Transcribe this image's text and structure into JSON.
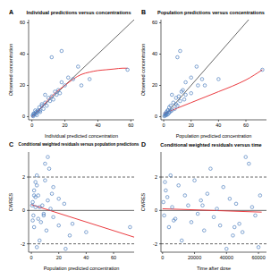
{
  "chart_data": [
    {
      "type": "scatter",
      "title": "Individual predictions versus concentrations",
      "annotations": [
        "A"
      ],
      "x_label": "Individual predicted concentration",
      "y_label": "Observed concentration",
      "xlim": [
        -2,
        62
      ],
      "ylim": [
        -2,
        62
      ],
      "xticks": [
        0,
        20,
        40,
        60
      ],
      "yticks": [
        0,
        20,
        40,
        60
      ],
      "series": [
        {
          "type": "scatter",
          "color": "#4f7fbf",
          "marker": "circle",
          "x": [
            0.5,
            1,
            1.5,
            2,
            2.5,
            3,
            3.5,
            4,
            4.5,
            5,
            6,
            7,
            8,
            9,
            10,
            11,
            12,
            13,
            14,
            15,
            16,
            17,
            18,
            20,
            22,
            25,
            28,
            30,
            35,
            18,
            12,
            8,
            6,
            5,
            3,
            2,
            1,
            0.8,
            58
          ],
          "values": [
            0.8,
            1.2,
            2,
            1.5,
            3,
            2.5,
            4,
            3.5,
            6,
            4,
            7,
            5,
            9,
            7,
            12,
            10,
            13,
            11,
            16,
            14,
            17,
            15,
            22,
            20,
            25,
            24,
            32,
            20,
            24,
            42,
            38,
            14,
            8,
            3,
            1,
            4,
            2,
            0.3,
            30
          ]
        },
        {
          "type": "line",
          "color": "#000000",
          "line_style": "solid",
          "x": [
            0,
            62
          ],
          "values": [
            0,
            62
          ]
        },
        {
          "type": "line",
          "color": "#e8262b",
          "line_style": "solid",
          "marker": "smooth",
          "x": [
            0,
            5,
            10,
            15,
            20,
            25,
            30,
            35,
            40,
            45,
            50,
            55,
            58
          ],
          "values": [
            0,
            5,
            11,
            16,
            20,
            24,
            27,
            28.5,
            29.5,
            30,
            30.5,
            31,
            31
          ]
        }
      ]
    },
    {
      "type": "scatter",
      "title": "Population predictions versus concentrations",
      "annotations": [
        "B"
      ],
      "x_label": "Population predicted concentration",
      "y_label": "Observed concentration",
      "xlim": [
        -2,
        75
      ],
      "ylim": [
        -2,
        62
      ],
      "xticks": [
        0,
        20,
        40,
        60
      ],
      "yticks": [
        0,
        20,
        40,
        60
      ],
      "series": [
        {
          "type": "scatter",
          "color": "#4f7fbf",
          "marker": "circle",
          "x": [
            1,
            1.5,
            2,
            3,
            2,
            4,
            3,
            5,
            4,
            6,
            5,
            8,
            7,
            10,
            9,
            12,
            11,
            15,
            13,
            16,
            14,
            20,
            16,
            25,
            20,
            28,
            24,
            30,
            40,
            12,
            10,
            6,
            9,
            4,
            2,
            3,
            1,
            0.5,
            72
          ],
          "values": [
            0.8,
            1.2,
            2,
            1.5,
            3,
            2.5,
            4,
            3.5,
            6,
            4,
            7,
            5,
            9,
            7,
            12,
            10,
            13,
            11,
            16,
            14,
            17,
            15,
            22,
            20,
            25,
            24,
            32,
            20,
            24,
            42,
            38,
            14,
            8,
            3,
            1,
            4,
            2,
            0.3,
            30
          ]
        },
        {
          "type": "line",
          "color": "#000000",
          "line_style": "solid",
          "x": [
            0,
            62
          ],
          "values": [
            0,
            62
          ]
        },
        {
          "type": "line",
          "color": "#e8262b",
          "line_style": "solid",
          "marker": "smooth",
          "x": [
            0,
            10,
            20,
            30,
            40,
            50,
            60,
            72
          ],
          "values": [
            2,
            5.5,
            9,
            12.5,
            16,
            19.5,
            23.5,
            30
          ]
        }
      ]
    },
    {
      "type": "scatter",
      "title": "Conditional weighted residuals versus population predictions",
      "annotations": [
        "C"
      ],
      "x_label": "Population predicted concentration",
      "y_label": "CWRES",
      "xlim": [
        -2,
        75
      ],
      "ylim": [
        -2.5,
        3.5
      ],
      "xticks": [
        0,
        20,
        40,
        60
      ],
      "yticks": [
        -2,
        0,
        2
      ],
      "series": [
        {
          "type": "scatter",
          "color": "#4f7fbf",
          "marker": "circle",
          "x": [
            1,
            1.5,
            2,
            3,
            2,
            4,
            3,
            5,
            4,
            6,
            5,
            8,
            7,
            10,
            9,
            12,
            11,
            15,
            13,
            16,
            14,
            20,
            16,
            25,
            20,
            28,
            24,
            30,
            40,
            12,
            10,
            6,
            9,
            4,
            2,
            3,
            1,
            0.5,
            72
          ],
          "values": [
            0.5,
            -0.3,
            1.2,
            0.8,
            -1,
            2.1,
            0.2,
            -0.5,
            1.5,
            -1.8,
            0.9,
            0.3,
            -0.7,
            1.8,
            -0.2,
            0.6,
            -1.2,
            1,
            2.5,
            -0.4,
            0.1,
            -0.9,
            1.4,
            -2.3,
            0.7,
            -1.5,
            0.4,
            -0.8,
            -1.3,
            3.2,
            2.8,
            0.2,
            -0.3,
            -2.2,
            0.9,
            1.7,
            -0.6,
            0.3,
            -1
          ]
        },
        {
          "type": "line",
          "color": "#000000",
          "line_style": "solid",
          "x": [
            -2,
            75
          ],
          "values": [
            0,
            0
          ]
        },
        {
          "type": "line",
          "color": "#000000",
          "line_style": "dashed",
          "x": [
            -2,
            75
          ],
          "values": [
            2,
            2
          ]
        },
        {
          "type": "line",
          "color": "#000000",
          "line_style": "dashed",
          "x": [
            -2,
            75
          ],
          "values": [
            -2,
            -2
          ]
        },
        {
          "type": "line",
          "color": "#e8262b",
          "line_style": "solid",
          "x": [
            0,
            75
          ],
          "values": [
            0.35,
            -1.6
          ]
        }
      ]
    },
    {
      "type": "scatter",
      "title": "Conditional weighted residuals versus time",
      "annotations": [
        "D"
      ],
      "x_label": "Time after dose",
      "y_label": "CWRES",
      "xlim": [
        -1000,
        65000
      ],
      "ylim": [
        -2.5,
        3.5
      ],
      "xticks": [
        0,
        20000,
        40000,
        60000
      ],
      "yticks": [
        -2,
        0,
        2
      ],
      "series": [
        {
          "type": "scatter",
          "color": "#4f7fbf",
          "marker": "circle",
          "x": [
            500,
            1000,
            2000,
            3000,
            4000,
            5000,
            6000,
            8000,
            10000,
            12000,
            14000,
            16000,
            18000,
            20000,
            22000,
            24000,
            26000,
            28000,
            30000,
            32000,
            34000,
            36000,
            38000,
            40000,
            42000,
            44000,
            46000,
            48000,
            50000,
            52000,
            54000,
            56000,
            58000,
            60000,
            61000,
            1500,
            7000,
            25000,
            45000
          ],
          "values": [
            0.5,
            -0.3,
            1.2,
            0.8,
            -1,
            2.1,
            0.2,
            -0.5,
            1.5,
            -1.8,
            0.9,
            0.3,
            -0.7,
            1.8,
            -0.2,
            0.6,
            -1.2,
            1,
            2.5,
            -0.4,
            0.1,
            -0.9,
            1.4,
            -2.3,
            0.7,
            -1.5,
            0.4,
            -0.8,
            -1.3,
            3.2,
            2.8,
            0.2,
            -0.3,
            -2.2,
            0.9,
            1.7,
            -0.6,
            0.3,
            -1
          ]
        },
        {
          "type": "line",
          "color": "#000000",
          "line_style": "solid",
          "x": [
            -1000,
            65000
          ],
          "values": [
            0,
            0
          ]
        },
        {
          "type": "line",
          "color": "#000000",
          "line_style": "dashed",
          "x": [
            -1000,
            65000
          ],
          "values": [
            2,
            2
          ]
        },
        {
          "type": "line",
          "color": "#000000",
          "line_style": "dashed",
          "x": [
            -1000,
            65000
          ],
          "values": [
            -2,
            -2
          ]
        },
        {
          "type": "line",
          "color": "#e8262b",
          "line_style": "solid",
          "x": [
            0,
            62000
          ],
          "values": [
            0.1,
            -0.1
          ]
        }
      ]
    }
  ]
}
